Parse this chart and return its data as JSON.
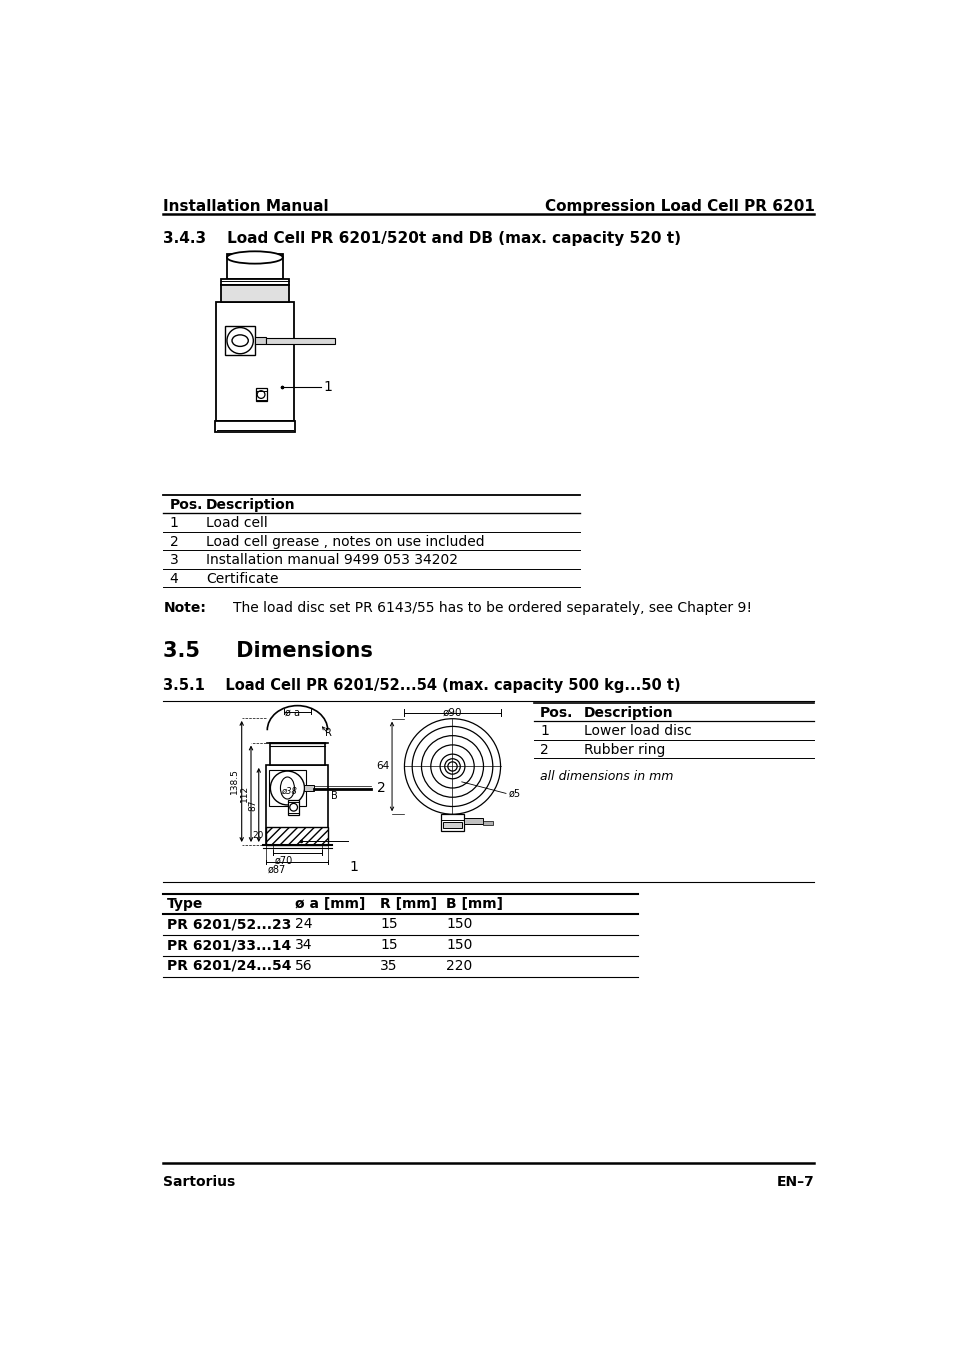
{
  "header_left": "Installation Manual",
  "header_right": "Compression Load Cell PR 6201",
  "footer_left": "Sartorius",
  "footer_right": "EN–7",
  "section_343_title": "3.4.3    Load Cell PR 6201/520t and DB (max. capacity 520 t)",
  "table1_headers": [
    "Pos.",
    "Description"
  ],
  "table1_rows": [
    [
      "1",
      "Load cell"
    ],
    [
      "2",
      "Load cell grease , notes on use included"
    ],
    [
      "3",
      "Installation manual 9499 053 34202"
    ],
    [
      "4",
      "Certificate"
    ]
  ],
  "note_label": "Note:",
  "note_text": "The load disc set PR 6143/55 has to be ordered separately, see Chapter 9!",
  "section_35_title": "3.5     Dimensions",
  "section_351_title": "3.5.1    Load Cell PR 6201/52...54 (max. capacity 500 kg...50 t)",
  "dim_table_pos_header": "Pos.",
  "dim_table_desc_header": "Description",
  "dim_table_rows": [
    [
      "1",
      "Lower load disc"
    ],
    [
      "2",
      "Rubber ring"
    ]
  ],
  "dim_note": "all dimensions in mm",
  "type_table_headers": [
    "Type",
    "ø a [mm]",
    "R [mm]",
    "B [mm]"
  ],
  "type_table_rows": [
    [
      "PR 6201/52...23",
      "24",
      "15",
      "150"
    ],
    [
      "PR 6201/33...14",
      "34",
      "15",
      "150"
    ],
    [
      "PR 6201/24...54",
      "56",
      "35",
      "220"
    ]
  ],
  "bg_color": "#ffffff"
}
